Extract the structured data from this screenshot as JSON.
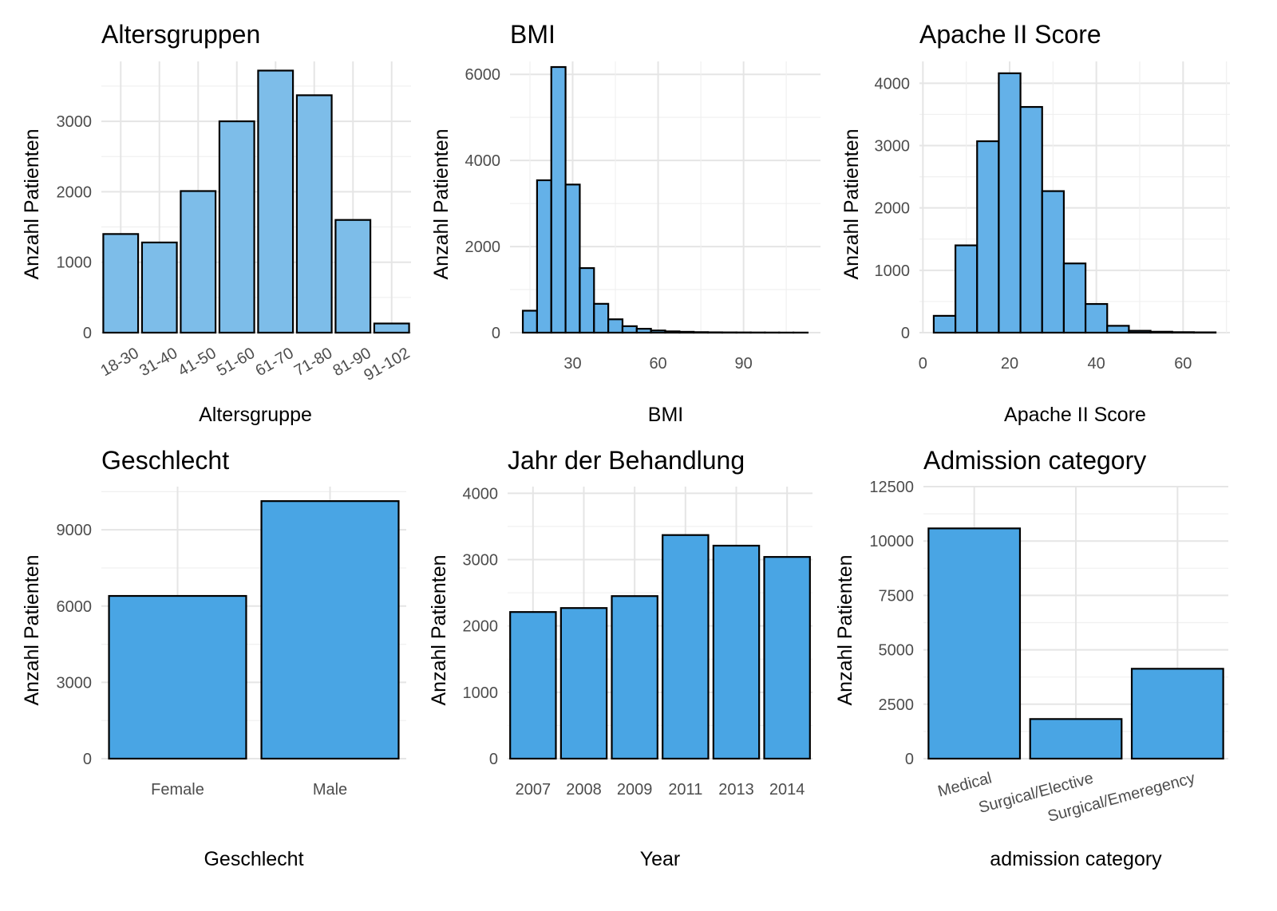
{
  "chart_data": [
    {
      "type": "bar",
      "title": "Altersgruppen",
      "xlabel": "Altersgruppe",
      "ylabel": "Anzahl Patienten",
      "categories": [
        "18-30",
        "31-40",
        "41-50",
        "51-60",
        "61-70",
        "71-80",
        "81-90",
        "91-102"
      ],
      "values": [
        1400,
        1280,
        2010,
        3000,
        3720,
        3370,
        1600,
        130
      ],
      "ylim": [
        0,
        3850
      ],
      "yticks": [
        0,
        1000,
        2000,
        3000
      ],
      "tick_rotation": -30,
      "bar_color": "#7dbde9",
      "grid": true
    },
    {
      "type": "histogram",
      "title": "BMI",
      "xlabel": "BMI",
      "ylabel": "Anzahl Patienten",
      "bins": [
        {
          "x0": 12.5,
          "x1": 17.5,
          "count": 510
        },
        {
          "x0": 17.5,
          "x1": 22.5,
          "count": 3540
        },
        {
          "x0": 22.5,
          "x1": 27.5,
          "count": 6170
        },
        {
          "x0": 27.5,
          "x1": 32.5,
          "count": 3440
        },
        {
          "x0": 32.5,
          "x1": 37.5,
          "count": 1500
        },
        {
          "x0": 37.5,
          "x1": 42.5,
          "count": 670
        },
        {
          "x0": 42.5,
          "x1": 47.5,
          "count": 310
        },
        {
          "x0": 47.5,
          "x1": 52.5,
          "count": 150
        },
        {
          "x0": 52.5,
          "x1": 57.5,
          "count": 90
        },
        {
          "x0": 57.5,
          "x1": 62.5,
          "count": 50
        },
        {
          "x0": 62.5,
          "x1": 67.5,
          "count": 30
        },
        {
          "x0": 67.5,
          "x1": 72.5,
          "count": 20
        },
        {
          "x0": 72.5,
          "x1": 77.5,
          "count": 12
        },
        {
          "x0": 77.5,
          "x1": 82.5,
          "count": 8
        },
        {
          "x0": 82.5,
          "x1": 87.5,
          "count": 6
        },
        {
          "x0": 87.5,
          "x1": 92.5,
          "count": 5
        },
        {
          "x0": 92.5,
          "x1": 97.5,
          "count": 4
        },
        {
          "x0": 97.5,
          "x1": 102.5,
          "count": 3
        },
        {
          "x0": 102.5,
          "x1": 107.5,
          "count": 2
        },
        {
          "x0": 107.5,
          "x1": 112.5,
          "count": 2
        }
      ],
      "xlim": [
        8,
        117
      ],
      "ylim": [
        0,
        6300
      ],
      "xticks": [
        30,
        60,
        90
      ],
      "yticks": [
        0,
        2000,
        4000,
        6000
      ],
      "bar_color": "#64b1e8",
      "grid": true
    },
    {
      "type": "histogram",
      "title": "Apache II Score",
      "xlabel": "Apache II Score",
      "ylabel": "Anzahl Patienten",
      "bins": [
        {
          "x0": 2.5,
          "x1": 7.5,
          "count": 270
        },
        {
          "x0": 7.5,
          "x1": 12.5,
          "count": 1400
        },
        {
          "x0": 12.5,
          "x1": 17.5,
          "count": 3070
        },
        {
          "x0": 17.5,
          "x1": 22.5,
          "count": 4160
        },
        {
          "x0": 22.5,
          "x1": 27.5,
          "count": 3620
        },
        {
          "x0": 27.5,
          "x1": 32.5,
          "count": 2270
        },
        {
          "x0": 32.5,
          "x1": 37.5,
          "count": 1110
        },
        {
          "x0": 37.5,
          "x1": 42.5,
          "count": 460
        },
        {
          "x0": 42.5,
          "x1": 47.5,
          "count": 110
        },
        {
          "x0": 47.5,
          "x1": 52.5,
          "count": 30
        },
        {
          "x0": 52.5,
          "x1": 57.5,
          "count": 15
        },
        {
          "x0": 57.5,
          "x1": 62.5,
          "count": 8
        },
        {
          "x0": 62.5,
          "x1": 67.5,
          "count": 5
        }
      ],
      "xlim": [
        -0.8,
        70.8
      ],
      "ylim": [
        0,
        4350
      ],
      "xticks": [
        0,
        20,
        40,
        60
      ],
      "yticks": [
        0,
        1000,
        2000,
        3000,
        4000
      ],
      "bar_color": "#64b1e8",
      "grid": true
    },
    {
      "type": "bar",
      "title": "Geschlecht",
      "xlabel": "Geschlecht",
      "ylabel": "Anzahl Patienten",
      "categories": [
        "Female",
        "Male"
      ],
      "values": [
        6400,
        10130
      ],
      "ylim": [
        0,
        10700
      ],
      "yticks": [
        0,
        3000,
        6000,
        9000
      ],
      "bar_color": "#49a5e4",
      "grid": true
    },
    {
      "type": "bar",
      "title": "Jahr der Behandlung",
      "xlabel": "Year",
      "ylabel": "Anzahl Patienten",
      "categories": [
        "2007",
        "2008",
        "2009",
        "2011",
        "2013",
        "2014"
      ],
      "values": [
        2210,
        2270,
        2450,
        3370,
        3210,
        3040
      ],
      "ylim": [
        0,
        4100
      ],
      "yticks": [
        0,
        1000,
        2000,
        3000,
        4000
      ],
      "bar_color": "#49a5e4",
      "grid": true
    },
    {
      "type": "bar",
      "title": "Admission category",
      "xlabel": "admission category",
      "ylabel": "Anzahl Patienten",
      "categories": [
        "Medical",
        "Surgical/Elective",
        "Surgical/Emeregency"
      ],
      "values": [
        10580,
        1820,
        4130
      ],
      "ylim": [
        0,
        12500
      ],
      "yticks": [
        0,
        2500,
        5000,
        7500,
        10000,
        12500
      ],
      "tick_rotation": -15,
      "bar_color": "#49a5e4",
      "grid": true
    }
  ]
}
